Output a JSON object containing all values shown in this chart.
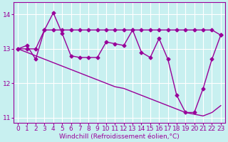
{
  "xlabel": "Windchill (Refroidissement éolien,°C)",
  "background_color": "#c8f0f0",
  "line_color": "#990099",
  "hours": [
    0,
    1,
    2,
    3,
    4,
    5,
    6,
    7,
    8,
    9,
    10,
    11,
    12,
    13,
    14,
    15,
    16,
    17,
    18,
    19,
    20,
    21,
    22,
    23
  ],
  "windchill": [
    13.0,
    13.1,
    12.7,
    13.55,
    14.05,
    13.45,
    12.8,
    12.75,
    12.75,
    12.75,
    13.2,
    13.15,
    13.1,
    13.55,
    12.9,
    12.75,
    13.3,
    12.7,
    11.65,
    11.15,
    11.15,
    11.85,
    12.7,
    13.4
  ],
  "upper_line": [
    13.0,
    13.0,
    13.0,
    13.55,
    13.55,
    13.55,
    13.55,
    13.55,
    13.55,
    13.55,
    13.55,
    13.55,
    13.55,
    13.55,
    13.55,
    13.55,
    13.55,
    13.55,
    13.55,
    13.55,
    13.55,
    13.55,
    13.55,
    13.4
  ],
  "trend": [
    13.0,
    12.9,
    12.8,
    12.7,
    12.6,
    12.5,
    12.4,
    12.3,
    12.2,
    12.1,
    12.0,
    11.9,
    11.85,
    11.75,
    11.65,
    11.55,
    11.45,
    11.35,
    11.25,
    11.15,
    11.1,
    11.05,
    11.15,
    11.35
  ],
  "ylim": [
    10.85,
    14.35
  ],
  "yticks": [
    11,
    12,
    13,
    14
  ],
  "xlim": [
    -0.5,
    23.5
  ],
  "line_width": 1.0,
  "marker": "D",
  "marker_size": 2.5,
  "tick_fontsize": 6.5,
  "xlabel_fontsize": 6.5
}
